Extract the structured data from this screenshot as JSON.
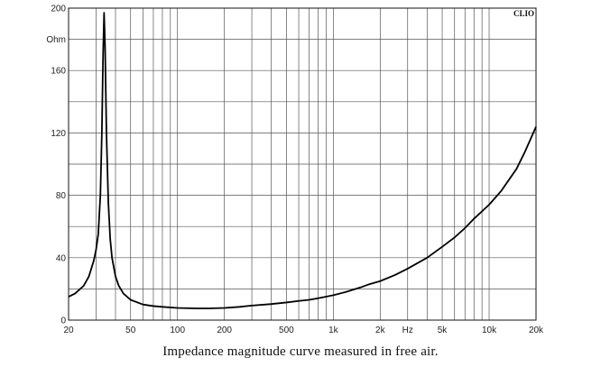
{
  "caption": "Impedance magnitude curve measured in free air.",
  "chart_data": {
    "type": "line",
    "brand_label": "CLIO",
    "y_unit_label": "Ohm",
    "x_unit_label": "Hz",
    "x_scale": "log",
    "xlim": [
      20,
      20000
    ],
    "ylim": [
      0,
      200
    ],
    "grid": true,
    "x_ticks": [
      {
        "value": 20,
        "label": "20"
      },
      {
        "value": 50,
        "label": "50"
      },
      {
        "value": 100,
        "label": "100"
      },
      {
        "value": 200,
        "label": "200"
      },
      {
        "value": 500,
        "label": "500"
      },
      {
        "value": 1000,
        "label": "1k"
      },
      {
        "value": 2000,
        "label": "2k"
      },
      {
        "value": 5000,
        "label": "5k"
      },
      {
        "value": 10000,
        "label": "10k"
      },
      {
        "value": 20000,
        "label": "20k"
      }
    ],
    "y_ticks": [
      {
        "value": 0,
        "label": "0"
      },
      {
        "value": 40,
        "label": "40"
      },
      {
        "value": 80,
        "label": "80"
      },
      {
        "value": 120,
        "label": "120"
      },
      {
        "value": 160,
        "label": "160"
      },
      {
        "value": 200,
        "label": "200"
      }
    ],
    "series": [
      {
        "color": "#000000",
        "points": [
          [
            20,
            15
          ],
          [
            22,
            17
          ],
          [
            25,
            22
          ],
          [
            27,
            28
          ],
          [
            29,
            38
          ],
          [
            30,
            45
          ],
          [
            31,
            55
          ],
          [
            32,
            80
          ],
          [
            32.7,
            120
          ],
          [
            33.3,
            170
          ],
          [
            33.8,
            197
          ],
          [
            34.3,
            175
          ],
          [
            35,
            120
          ],
          [
            36,
            75
          ],
          [
            37,
            52
          ],
          [
            38,
            40
          ],
          [
            40,
            28
          ],
          [
            42,
            22
          ],
          [
            45,
            17
          ],
          [
            50,
            13
          ],
          [
            60,
            10
          ],
          [
            70,
            9
          ],
          [
            80,
            8.5
          ],
          [
            100,
            7.8
          ],
          [
            130,
            7.5
          ],
          [
            160,
            7.5
          ],
          [
            200,
            7.8
          ],
          [
            250,
            8.5
          ],
          [
            300,
            9.3
          ],
          [
            400,
            10.3
          ],
          [
            500,
            11.3
          ],
          [
            600,
            12.3
          ],
          [
            700,
            13
          ],
          [
            800,
            14
          ],
          [
            1000,
            16
          ],
          [
            1200,
            18
          ],
          [
            1500,
            21
          ],
          [
            1700,
            23
          ],
          [
            2000,
            25
          ],
          [
            2500,
            29
          ],
          [
            3000,
            33
          ],
          [
            4000,
            40
          ],
          [
            5000,
            47
          ],
          [
            6000,
            53
          ],
          [
            7000,
            59
          ],
          [
            8000,
            65
          ],
          [
            10000,
            74
          ],
          [
            12000,
            83
          ],
          [
            15000,
            97
          ],
          [
            17000,
            108
          ],
          [
            20000,
            124
          ]
        ]
      }
    ]
  }
}
